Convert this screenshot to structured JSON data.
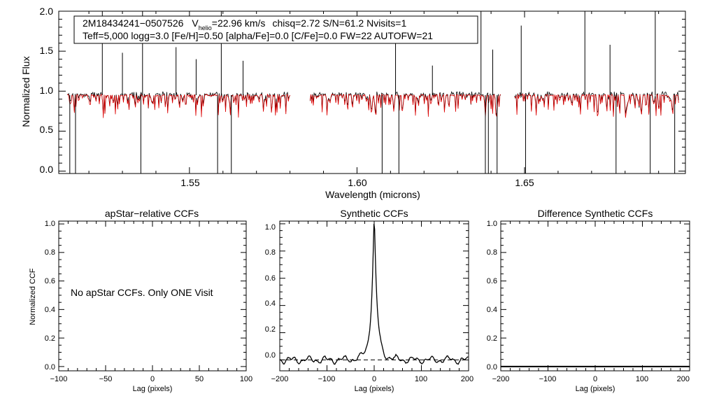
{
  "chart_data": [
    {
      "type": "line",
      "id": "spectrum",
      "xlabel": "Wavelength (microns)",
      "ylabel": "Normalized Flux",
      "xlim": [
        1.511,
        1.698
      ],
      "ylim": [
        -0.03,
        2.0
      ],
      "x_ticks": [
        "1.55",
        "1.60",
        "1.65"
      ],
      "x_tick_values": [
        1.55,
        1.6,
        1.65
      ],
      "y_ticks": [
        "0.0",
        "0.5",
        "1.0",
        "1.5",
        "2.0"
      ],
      "y_tick_values": [
        0.0,
        0.5,
        1.0,
        1.5,
        2.0
      ],
      "chips": [
        [
          1.5135,
          1.58
        ],
        [
          1.586,
          1.643
        ],
        [
          1.647,
          1.696
        ]
      ],
      "series": [
        {
          "color": "#000000",
          "continuum": 0.96
        },
        {
          "color": "#dd0000",
          "continuum": 0.95
        }
      ],
      "spikes": [
        1.524,
        1.53,
        1.536,
        1.546,
        1.552,
        1.5595,
        1.566,
        1.6115,
        1.6225,
        1.637,
        1.6405,
        1.649,
        1.668,
        1.6755,
        1.689
      ],
      "spike_heights": [
        2.0,
        1.48,
        2.0,
        1.55,
        1.4,
        2.0,
        1.38,
        1.7,
        1.32,
        2.0,
        1.52,
        1.82,
        2.0,
        1.58,
        2.0
      ],
      "dips": [
        1.5143,
        1.516,
        1.5355,
        1.5584,
        1.5625,
        1.6075,
        1.6125,
        1.6383,
        1.6392,
        1.6418,
        1.6503,
        1.6773,
        1.6875,
        1.6948
      ],
      "info_line1": {
        "object": "2M18434241−0507526",
        "v_symbol": "V",
        "v_subscript": "helio",
        "v_value": "=22.96 km/s",
        "rest": "chisq=2.72  S/N=61.2  Nvisits=1"
      },
      "info_line2": "Teff=5,000 logg=3.0 [Fe/H]=0.50 [alpha/Fe]=0.0 [C/Fe]=0.0 FW=22 AUTOFW=21"
    },
    {
      "type": "line",
      "id": "apstar_ccf",
      "title": "apStar−relative CCFs",
      "xlabel": "Lag (pixels)",
      "ylabel": "Normalized CCF",
      "xlim": [
        -100,
        100
      ],
      "ylim": [
        -0.03,
        1.02
      ],
      "x_ticks": [
        "−100",
        "−50",
        "0",
        "50",
        "100"
      ],
      "x_tick_values": [
        -100,
        -50,
        0,
        50,
        100
      ],
      "y_ticks": [
        "0.0",
        "0.2",
        "0.4",
        "0.6",
        "0.8",
        "1.0"
      ],
      "y_tick_values": [
        0.0,
        0.2,
        0.4,
        0.6,
        0.8,
        1.0
      ],
      "message": "No apStar CCFs.  Only ONE Visit"
    },
    {
      "type": "line",
      "id": "synthetic_ccf",
      "title": "Synthetic CCFs",
      "xlabel": "Lag (pixels)",
      "xlim": [
        -200,
        200
      ],
      "ylim": [
        -0.08,
        1.02
      ],
      "x_ticks": [
        "−200",
        "−100",
        "0",
        "100",
        "200"
      ],
      "x_tick_values": [
        -200,
        -100,
        0,
        100,
        200
      ],
      "y_ticks": [
        "0.0",
        "0.2",
        "0.4",
        "0.6",
        "0.8",
        "1.0"
      ],
      "y_tick_values": [
        0.0,
        0.2,
        0.4,
        0.6,
        0.8,
        1.0
      ],
      "peak_lag": 0,
      "peak_value": 1.0,
      "baseline": 0.0
    },
    {
      "type": "line",
      "id": "difference_ccf",
      "title": "Difference Synthetic CCFs",
      "xlabel": "Lag (pixels)",
      "xlim": [
        -200,
        200
      ],
      "ylim": [
        -0.03,
        1.02
      ],
      "x_ticks": [
        "−200",
        "−100",
        "0",
        "100",
        "200"
      ],
      "x_tick_values": [
        -200,
        -100,
        0,
        100,
        200
      ],
      "y_ticks": [
        "0.0",
        "0.2",
        "0.4",
        "0.6",
        "0.8",
        "1.0"
      ],
      "y_tick_values": [
        0.0,
        0.2,
        0.4,
        0.6,
        0.8,
        1.0
      ],
      "baseline": 0.0
    }
  ]
}
